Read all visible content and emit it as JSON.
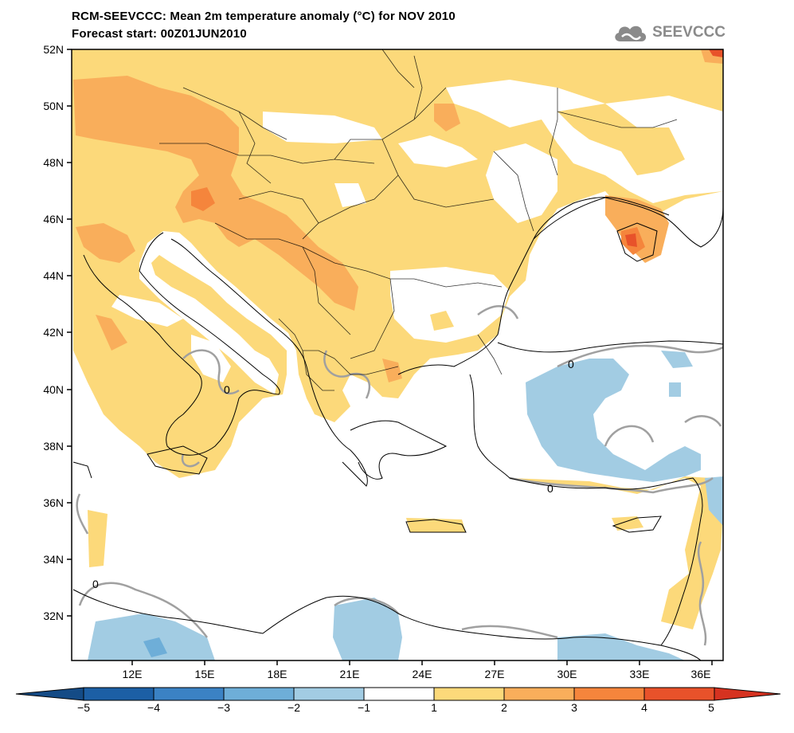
{
  "title": {
    "line1": "RCM-SEEVCCC: Mean 2m temperature anomaly (°C) for NOV 2010",
    "line2": "Forecast start: 00Z01JUN2010"
  },
  "logo": {
    "text": "SEEVCCC",
    "icon": "cloud-icon",
    "color": "#8a8a8a"
  },
  "map": {
    "lat_labels": [
      "52N",
      "50N",
      "48N",
      "46N",
      "44N",
      "42N",
      "40N",
      "38N",
      "36N",
      "34N",
      "32N"
    ],
    "lon_labels": [
      "12E",
      "15E",
      "18E",
      "21E",
      "24E",
      "27E",
      "30E",
      "33E",
      "36E"
    ],
    "contour_label": "0",
    "colors": {
      "land_warm1": "#fcd97a",
      "land_warm2": "#f9ae5b",
      "land_warm3": "#f5853c",
      "land_warm4": "#e8522a",
      "cool1": "#a2cce3",
      "cool2": "#6eaed8",
      "coast": "#000000",
      "contour": "#a0a0a0"
    }
  },
  "colorbar": {
    "ticks": [
      "−5",
      "−4",
      "−3",
      "−2",
      "−1",
      "1",
      "2",
      "3",
      "4",
      "5"
    ],
    "colors": [
      "#1c5fa5",
      "#3b82c4",
      "#6eaed8",
      "#a2cce3",
      "#ffffff",
      "#fcd97a",
      "#f9ae5b",
      "#f5853c",
      "#e8522a"
    ],
    "low_color": "#144b86",
    "high_color": "#d63220"
  }
}
